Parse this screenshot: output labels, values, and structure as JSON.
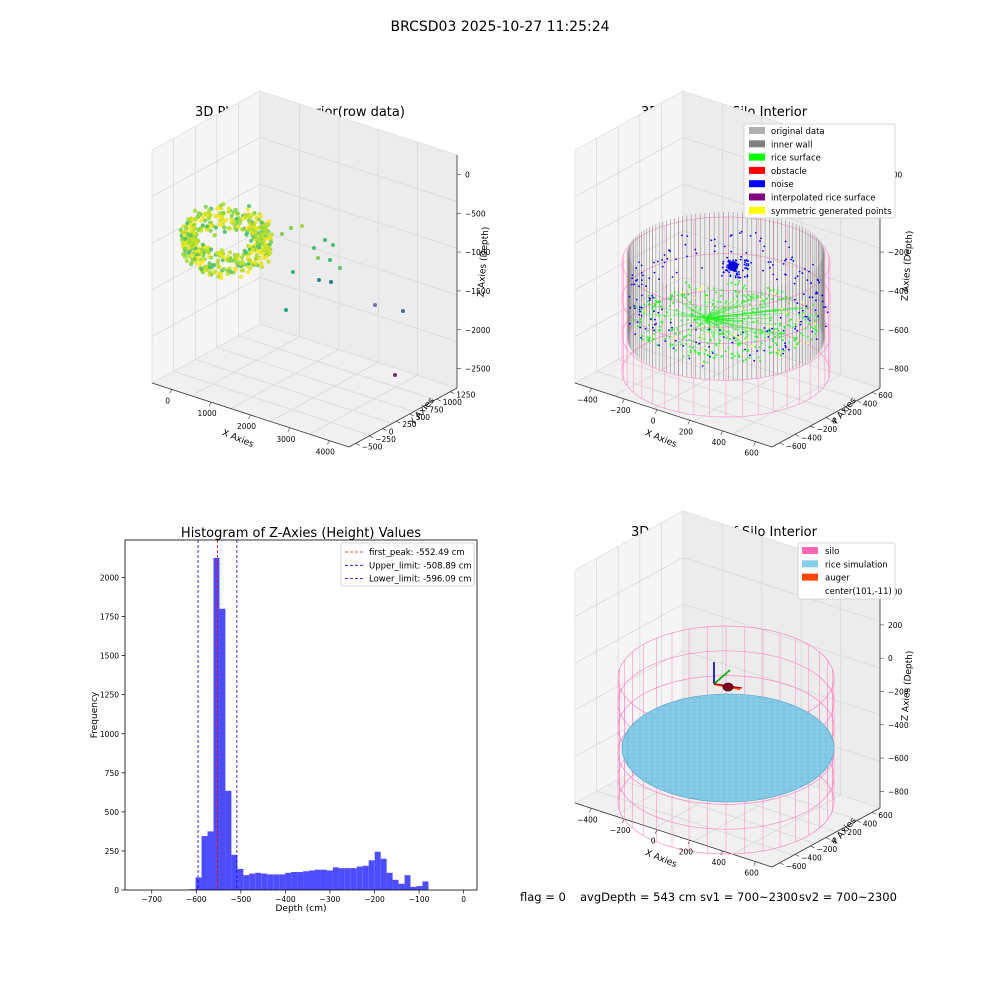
{
  "suptitle": "BRCSD03 2025-10-27 11:25:24",
  "panel_raw": {
    "title": "3D Plot of Silo Interior(row data)",
    "xlabel": "X Axies",
    "ylabel": "Y Axies",
    "zlabel": "Z Axies (Depth)",
    "xticks": [
      "0",
      "1000",
      "2000",
      "3000",
      "4000"
    ],
    "yticks": [
      "1250",
      "1000",
      "750",
      "500",
      "250",
      "0",
      "−250",
      "−500"
    ],
    "zticks": [
      "0",
      "−500",
      "−1000",
      "−1500",
      "−2000",
      "−2500"
    ]
  },
  "panel_classify": {
    "title": "3D classify of Silo Interior",
    "xlabel": "X Axies",
    "ylabel": "Y Axies",
    "zlabel": "Z Axies (Depth)",
    "xticks": [
      "−400",
      "−200",
      "0",
      "200",
      "400",
      "600"
    ],
    "yticks": [
      "600",
      "400",
      "200",
      "0",
      "−200",
      "−400",
      "−600"
    ],
    "zticks": [
      "200",
      "0",
      "−200",
      "−400",
      "−600",
      "−800"
    ],
    "legend": [
      {
        "label": "original data",
        "color": "#b0b0b0"
      },
      {
        "label": "inner wall",
        "color": "#808080"
      },
      {
        "label": "rice surface",
        "color": "#00ff00"
      },
      {
        "label": "obstacle",
        "color": "#ff0000"
      },
      {
        "label": "noise",
        "color": "#0000ff"
      },
      {
        "label": "interpolated rice surface",
        "color": "#800080"
      },
      {
        "label": "symmetric generated points",
        "color": "#ffff00"
      }
    ]
  },
  "panel_sim": {
    "title": "3D simulation of Silo Interior",
    "xlabel": "X Axies",
    "ylabel": "Y Axies",
    "zlabel": "Z Axies (Depth)",
    "xticks": [
      "−400",
      "−200",
      "0",
      "200",
      "400",
      "600"
    ],
    "yticks": [
      "600",
      "400",
      "200",
      "0",
      "−200",
      "−400",
      "−600"
    ],
    "zticks": [
      "400",
      "200",
      "0",
      "−200",
      "−400",
      "−600",
      "−800"
    ],
    "legend": [
      {
        "label": "silo",
        "color": "#ff69b4"
      },
      {
        "label": "rice simulation",
        "color": "#87ceeb"
      },
      {
        "label": "auger",
        "color": "#ff4500"
      },
      {
        "label": "center(101,-11)",
        "color": ""
      }
    ]
  },
  "status": {
    "flag": "flag = 0",
    "avg": "avgDepth = 543 cm",
    "sv1": "sv1 = 700~2300",
    "sv2": "sv2 = 700~2300"
  },
  "chart_data": [
    {
      "type": "histogram",
      "title": "Histogram of Z-Axies (Height) Values",
      "xlabel": "Depth (cm)",
      "ylabel": "Frequency",
      "xlim": [
        -760,
        30
      ],
      "ylim": [
        0,
        2240
      ],
      "xticks": [
        -700,
        -600,
        -500,
        -400,
        -300,
        -200,
        -100,
        0
      ],
      "xtick_labels": [
        "−700",
        "−600",
        "−500",
        "−400",
        "−300",
        "−200",
        "−100",
        "0"
      ],
      "yticks": [
        0,
        250,
        500,
        750,
        1000,
        1250,
        1500,
        1750,
        2000
      ],
      "bar_color": "#4d4dff",
      "bin_width": 13.4,
      "bin_start": -615,
      "counts": [
        5,
        80,
        345,
        375,
        2125,
        1800,
        635,
        225,
        135,
        95,
        105,
        110,
        105,
        100,
        100,
        100,
        110,
        115,
        115,
        120,
        125,
        130,
        130,
        125,
        145,
        140,
        140,
        140,
        150,
        155,
        190,
        245,
        200,
        110,
        65,
        40,
        95,
        20,
        25,
        55
      ],
      "vlines": [
        {
          "label": "first_peak: -552.49 cm",
          "x": -552.49,
          "color": "#ff0000"
        },
        {
          "label": "Upper_limit: -508.89 cm",
          "x": -508.89,
          "color": "#0000cc"
        },
        {
          "label": "Lower_limit: -596.09 cm",
          "x": -596.09,
          "color": "#0000cc"
        }
      ]
    }
  ]
}
